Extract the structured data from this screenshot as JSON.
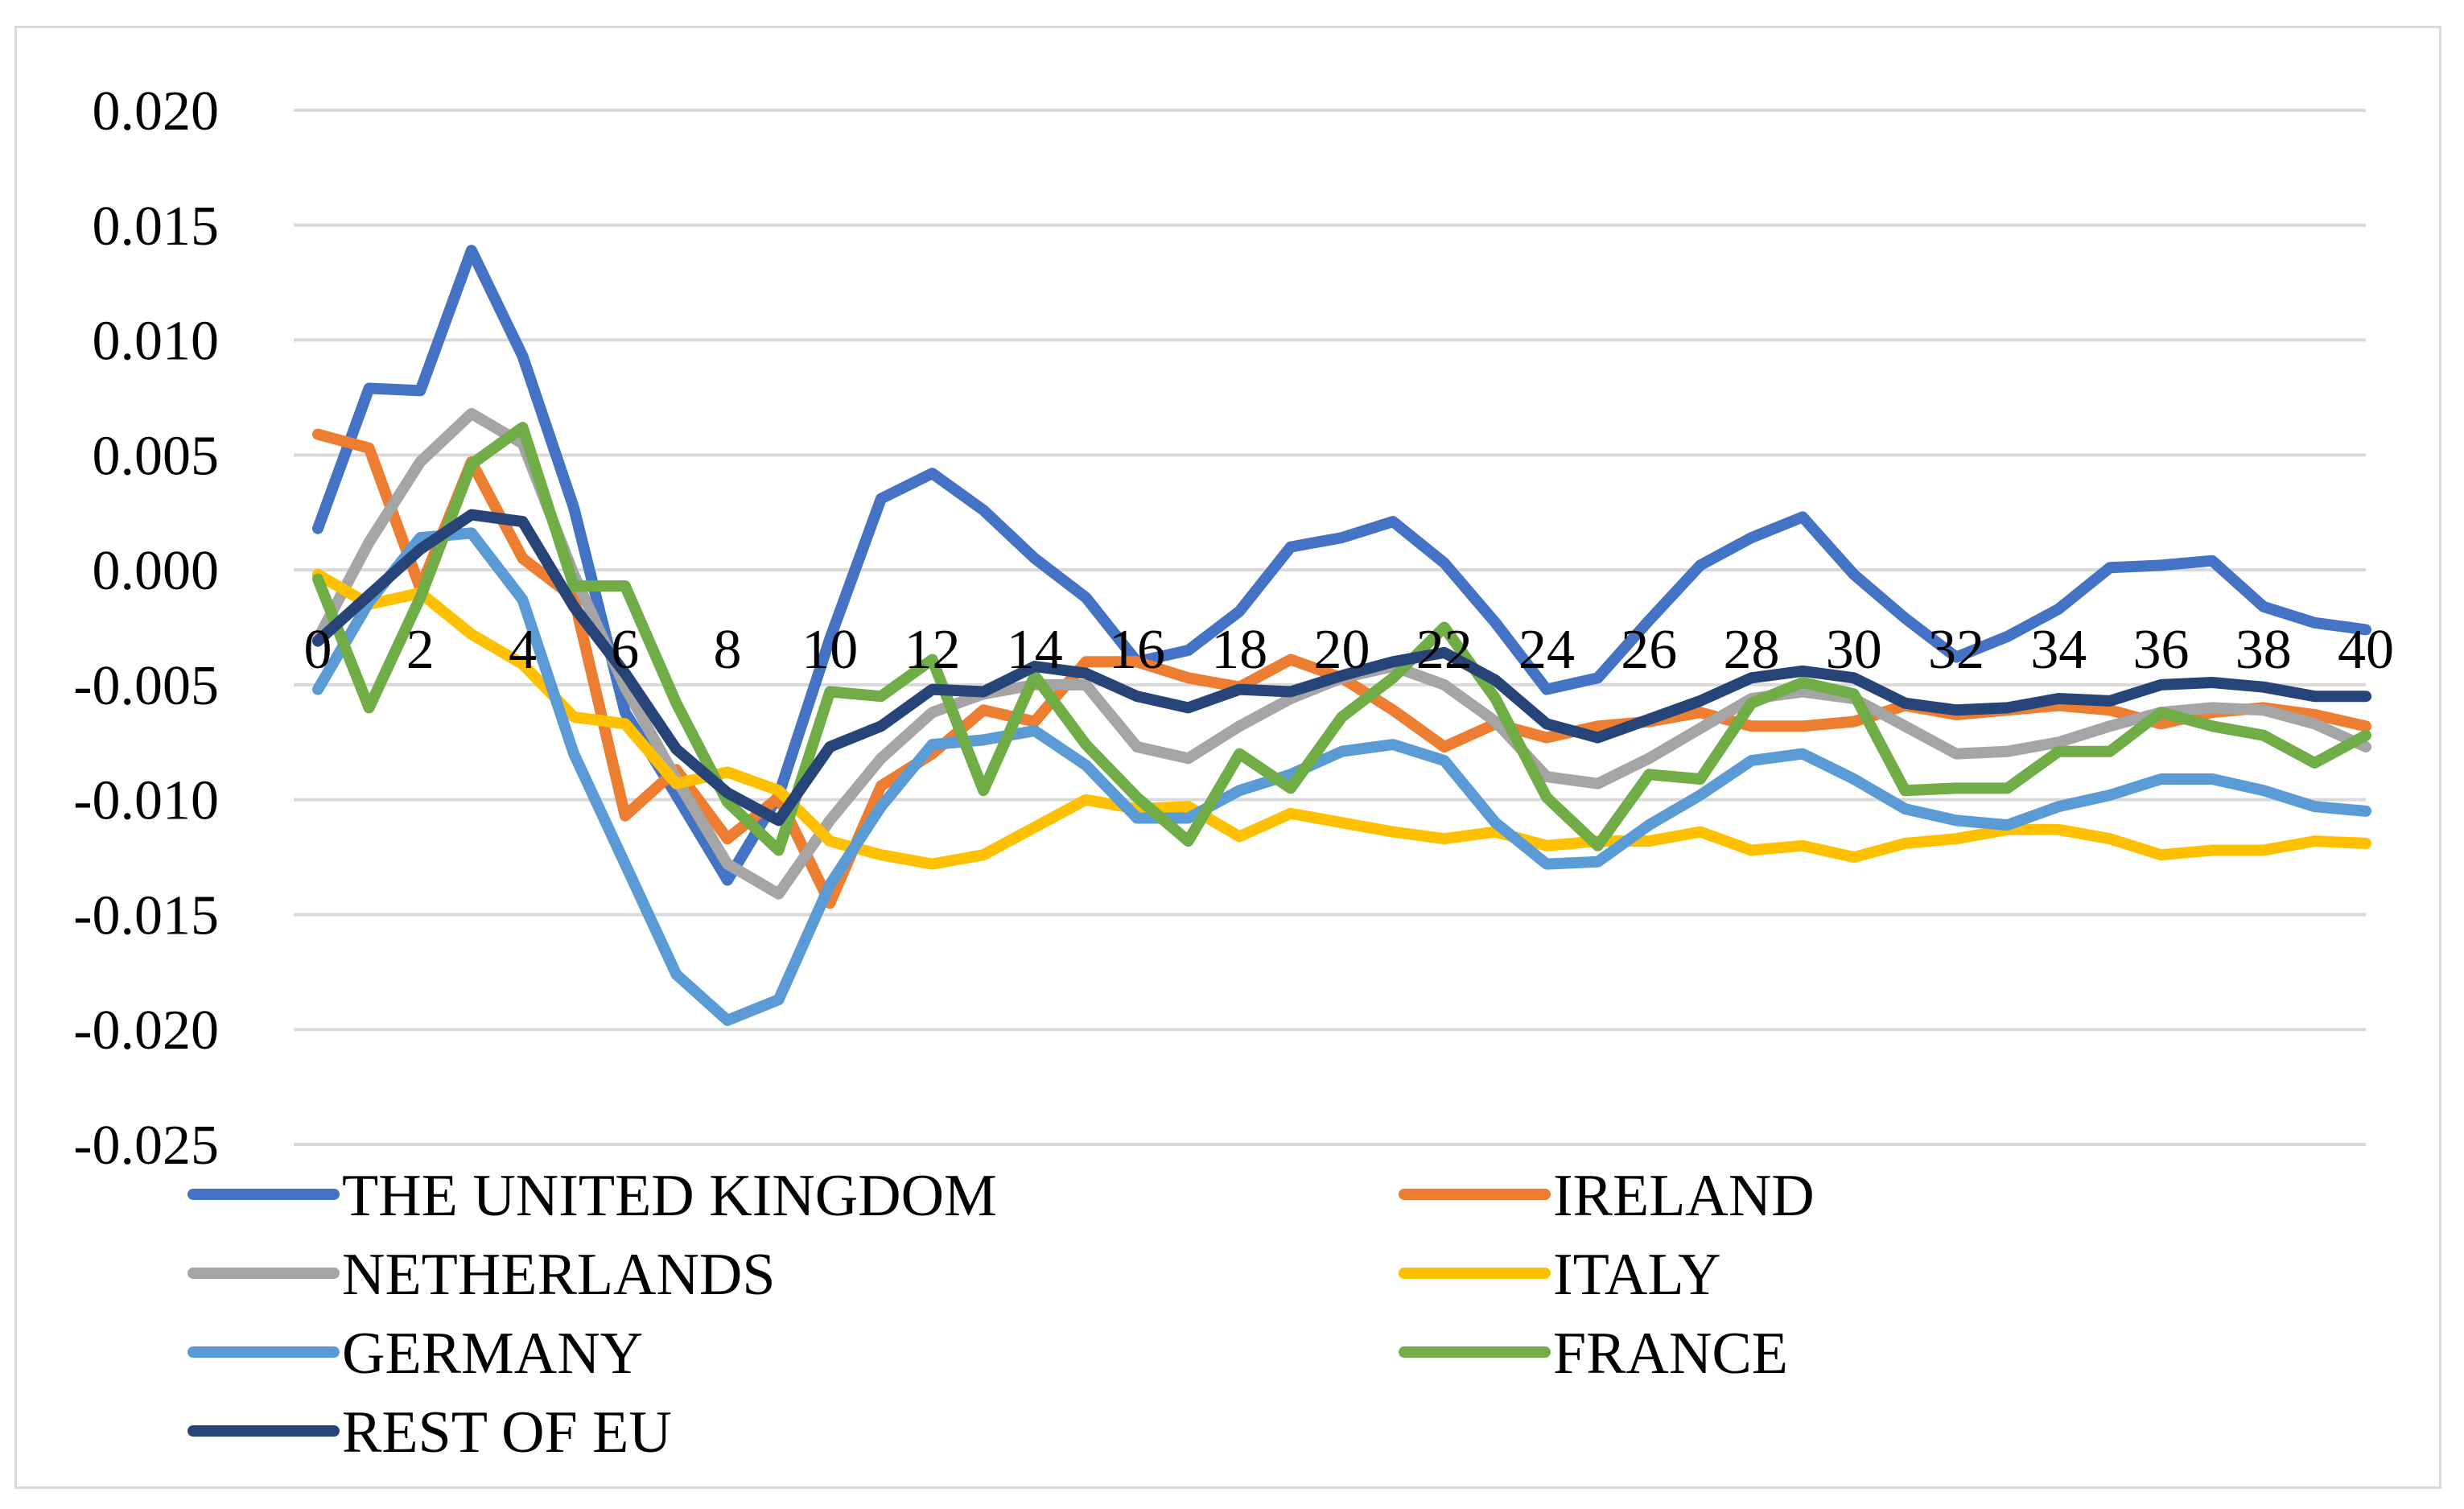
{
  "chart_data": {
    "type": "line",
    "title": "",
    "xlabel": "",
    "ylabel": "",
    "ylim": [
      -0.025,
      0.02
    ],
    "y_ticks": [
      "0.020",
      "0.015",
      "0.010",
      "0.005",
      "0.000",
      "-0.005",
      "-0.010",
      "-0.015",
      "-0.020",
      "-0.025"
    ],
    "y_tick_values": [
      0.02,
      0.015,
      0.01,
      0.005,
      0.0,
      -0.005,
      -0.01,
      -0.015,
      -0.02,
      -0.025
    ],
    "x_ticks": [
      "0",
      "2",
      "4",
      "6",
      "8",
      "10",
      "12",
      "14",
      "16",
      "18",
      "20",
      "22",
      "24",
      "26",
      "28",
      "30",
      "32",
      "34",
      "36",
      "38",
      "40"
    ],
    "x_tick_values": [
      0,
      2,
      4,
      6,
      8,
      10,
      12,
      14,
      16,
      18,
      20,
      22,
      24,
      26,
      28,
      30,
      32,
      34,
      36,
      38,
      40
    ],
    "x": [
      0,
      1,
      2,
      3,
      4,
      5,
      6,
      7,
      8,
      9,
      10,
      11,
      12,
      13,
      14,
      15,
      16,
      17,
      18,
      19,
      20,
      21,
      22,
      23,
      24,
      25,
      26,
      27,
      28,
      29,
      30,
      31,
      32,
      33,
      34,
      35,
      36,
      37,
      38,
      39,
      40
    ],
    "grid": true,
    "legend_position": "bottom",
    "series": [
      {
        "name": "THE UNITED KINGDOM",
        "color": "#4472c4",
        "values": [
          0.0018,
          0.0079,
          0.0078,
          0.0139,
          0.0093,
          0.0027,
          -0.0062,
          -0.0098,
          -0.0135,
          -0.0098,
          -0.003,
          0.0031,
          0.0042,
          0.0026,
          0.0005,
          -0.0012,
          -0.004,
          -0.0035,
          -0.0018,
          0.001,
          0.0014,
          0.0021,
          0.0003,
          -0.0023,
          -0.0052,
          -0.0047,
          -0.0022,
          0.0002,
          0.0014,
          0.0023,
          -0.0002,
          -0.0021,
          -0.0038,
          -0.0029,
          -0.0017,
          0.0001,
          0.0002,
          0.0004,
          -0.0016,
          -0.0023,
          -0.0026
        ]
      },
      {
        "name": "IRELAND",
        "color": "#ed7d31",
        "values": [
          0.0059,
          0.0053,
          -0.0008,
          0.0047,
          0.0005,
          -0.0012,
          -0.0107,
          -0.0087,
          -0.0117,
          -0.0099,
          -0.0145,
          -0.0094,
          -0.008,
          -0.0061,
          -0.0066,
          -0.004,
          -0.004,
          -0.0047,
          -0.0051,
          -0.0039,
          -0.0047,
          -0.0061,
          -0.0077,
          -0.0067,
          -0.0073,
          -0.0068,
          -0.0066,
          -0.0062,
          -0.0068,
          -0.0068,
          -0.0066,
          -0.0059,
          -0.0063,
          -0.0061,
          -0.0059,
          -0.0061,
          -0.0067,
          -0.0062,
          -0.006,
          -0.0063,
          -0.0068
        ]
      },
      {
        "name": "NETHERLANDS",
        "color": "#a5a5a5",
        "values": [
          -0.003,
          0.0012,
          0.0047,
          0.0068,
          0.0055,
          -0.0002,
          -0.0051,
          -0.0091,
          -0.0128,
          -0.0141,
          -0.0109,
          -0.0082,
          -0.0062,
          -0.0054,
          -0.005,
          -0.005,
          -0.0077,
          -0.0082,
          -0.0068,
          -0.0056,
          -0.0047,
          -0.0042,
          -0.005,
          -0.0066,
          -0.009,
          -0.0093,
          -0.0082,
          -0.0069,
          -0.0056,
          -0.0053,
          -0.0056,
          -0.0068,
          -0.008,
          -0.0079,
          -0.0075,
          -0.0068,
          -0.0062,
          -0.006,
          -0.0061,
          -0.0067,
          -0.0077
        ]
      },
      {
        "name": "ITALY",
        "color": "#ffc000",
        "values": [
          -0.0002,
          -0.0015,
          -0.001,
          -0.0028,
          -0.0041,
          -0.0064,
          -0.0067,
          -0.0093,
          -0.0088,
          -0.0096,
          -0.0118,
          -0.0124,
          -0.0128,
          -0.0124,
          -0.0112,
          -0.01,
          -0.0104,
          -0.0103,
          -0.0116,
          -0.0106,
          -0.011,
          -0.0114,
          -0.0117,
          -0.0114,
          -0.012,
          -0.0118,
          -0.0118,
          -0.0114,
          -0.0122,
          -0.012,
          -0.0125,
          -0.0119,
          -0.0117,
          -0.0113,
          -0.0113,
          -0.0117,
          -0.0124,
          -0.0122,
          -0.0122,
          -0.0118,
          -0.0119
        ]
      },
      {
        "name": "GERMANY",
        "color": "#5b9bd5",
        "values": [
          -0.0052,
          -0.0014,
          0.0014,
          0.0016,
          -0.0013,
          -0.008,
          -0.0128,
          -0.0176,
          -0.0196,
          -0.0187,
          -0.0137,
          -0.0103,
          -0.0076,
          -0.0074,
          -0.007,
          -0.0085,
          -0.0108,
          -0.0108,
          -0.0096,
          -0.0089,
          -0.0079,
          -0.0076,
          -0.0083,
          -0.011,
          -0.0128,
          -0.0127,
          -0.0111,
          -0.0098,
          -0.0083,
          -0.008,
          -0.0091,
          -0.0104,
          -0.0109,
          -0.0111,
          -0.0103,
          -0.0098,
          -0.0091,
          -0.0091,
          -0.0096,
          -0.0103,
          -0.0105
        ]
      },
      {
        "name": "FRANCE",
        "color": "#70ad47",
        "values": [
          -0.0004,
          -0.006,
          -0.0012,
          0.0046,
          0.0062,
          -0.0007,
          -0.0007,
          -0.0058,
          -0.0101,
          -0.0122,
          -0.0053,
          -0.0055,
          -0.0039,
          -0.0096,
          -0.0046,
          -0.0076,
          -0.0099,
          -0.0118,
          -0.008,
          -0.0095,
          -0.0064,
          -0.0047,
          -0.0025,
          -0.0056,
          -0.0099,
          -0.012,
          -0.0089,
          -0.0091,
          -0.0058,
          -0.0049,
          -0.0054,
          -0.0096,
          -0.0095,
          -0.0095,
          -0.0079,
          -0.0079,
          -0.0062,
          -0.0068,
          -0.0072,
          -0.0084,
          -0.0072
        ]
      },
      {
        "name": "REST OF EU",
        "color": "#264478",
        "values": [
          -0.0031,
          -0.0011,
          0.0009,
          0.0024,
          0.0021,
          -0.0016,
          -0.0045,
          -0.0078,
          -0.0097,
          -0.0109,
          -0.0077,
          -0.0068,
          -0.0052,
          -0.0053,
          -0.0042,
          -0.0045,
          -0.0055,
          -0.006,
          -0.0052,
          -0.0053,
          -0.0046,
          -0.004,
          -0.0036,
          -0.0048,
          -0.0067,
          -0.0073,
          -0.0065,
          -0.0057,
          -0.0047,
          -0.0044,
          -0.0047,
          -0.0058,
          -0.0061,
          -0.006,
          -0.0056,
          -0.0057,
          -0.005,
          -0.0049,
          -0.0051,
          -0.0055,
          -0.0055
        ]
      }
    ]
  }
}
